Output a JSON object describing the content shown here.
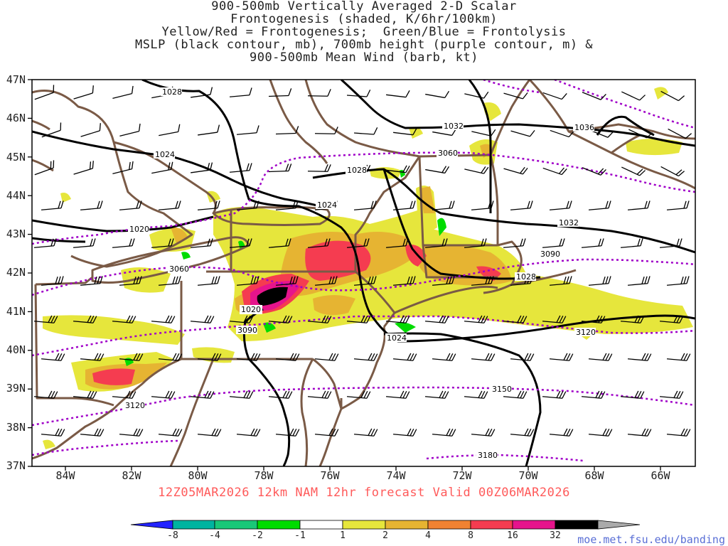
{
  "title": {
    "lines": [
      "900-500mb Vertically Averaged 2-D Scalar",
      "Frontogenesis (shaded, K/6hr/100km)",
      "Yellow/Red = Frontogenesis;  Green/Blue = Frontolysis",
      "MSLP (black contour, mb), 700mb height (purple contour, m) &",
      "900-500mb Mean Wind (barb, kt)"
    ]
  },
  "axes": {
    "lat_labels": [
      "47N",
      "46N",
      "45N",
      "44N",
      "43N",
      "42N",
      "41N",
      "40N",
      "39N",
      "38N",
      "37N"
    ],
    "lon_labels": [
      "84W",
      "82W",
      "80W",
      "78W",
      "76W",
      "74W",
      "72W",
      "70W",
      "68W",
      "66W"
    ]
  },
  "subtitle": "12Z05MAR2026 12km NAM 12hr forecast Valid 00Z06MAR2026",
  "colorbar": {
    "labels": [
      "-8",
      "-4",
      "-2",
      "-1",
      "1",
      "2",
      "4",
      "8",
      "16",
      "32"
    ],
    "colors": [
      "#2323ff",
      "#00b4a0",
      "#19c878",
      "#00dc00",
      "#ffffff",
      "#e6e63c",
      "#e6b432",
      "#f08232",
      "#f53c50",
      "#e6148c",
      "#000000",
      "#aaaaaa"
    ]
  },
  "contour_labels": {
    "mslp": [
      "1028",
      "1024",
      "1020",
      "1032",
      "1024",
      "1028",
      "1032",
      "1036",
      "1020",
      "1024",
      "1028"
    ],
    "height": [
      "3060",
      "3060",
      "3090",
      "3090",
      "3120",
      "3120",
      "3150",
      "3180"
    ]
  },
  "colors": {
    "mslp": "#000000",
    "height": "#a000c8",
    "borders": "#7a5a46",
    "barbs": "#000000"
  },
  "credit": "moe.met.fsu.edu/banding"
}
